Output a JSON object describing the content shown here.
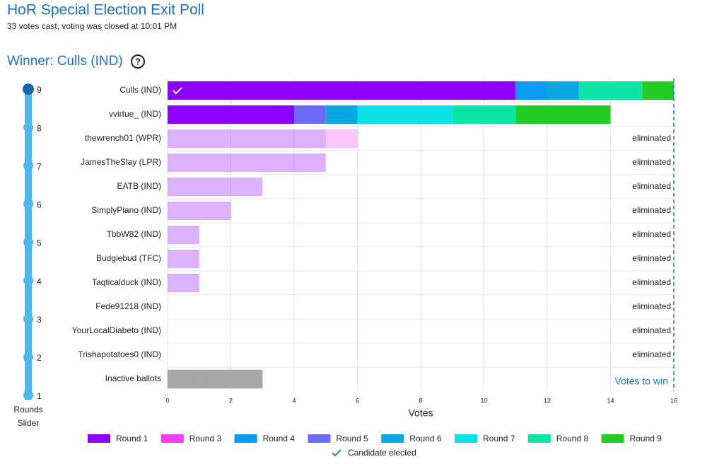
{
  "header": {
    "title": "HoR Special Election Exit Poll",
    "subtitle": "33 votes cast, voting was closed at 10:01 PM",
    "winner": "Winner: Culls (IND)"
  },
  "slider": {
    "ticks": [
      9,
      8,
      7,
      6,
      5,
      4,
      3,
      2,
      1
    ],
    "active": 9,
    "label_lines": [
      "Rounds",
      "Slider"
    ]
  },
  "chart_data": {
    "type": "stacked-bar-horizontal",
    "categories": [
      "Culls (IND)",
      "vvirtue_ (IND)",
      "thewrench01 (WPR)",
      "JamesTheSlay (LPR)",
      "EATB (IND)",
      "SimplyPiano (IND)",
      "TbbW82 (IND)",
      "Budgiebud (TFC)",
      "Taqticalduck (IND)",
      "Fede91218 (IND)",
      "YourLocalDiabeto (IND)",
      "Trishapotatoes0 (IND)"
    ],
    "status": [
      null,
      null,
      "eliminated",
      "eliminated",
      "eliminated",
      "eliminated",
      "eliminated",
      "eliminated",
      "eliminated",
      "eliminated",
      "eliminated",
      "eliminated"
    ],
    "series": [
      {
        "name": "Round 1",
        "color": "#8b00ff",
        "values": [
          11,
          4,
          5,
          5,
          3,
          2,
          1,
          1,
          1,
          0,
          0,
          0
        ]
      },
      {
        "name": "Round 3",
        "color": "#f03ef0",
        "values": [
          0,
          0,
          1,
          0,
          0,
          0,
          0,
          0,
          0,
          0,
          0,
          0
        ]
      },
      {
        "name": "Round 4",
        "color": "#0a9cf5",
        "values": [
          1,
          0,
          0,
          0,
          0,
          0,
          0,
          0,
          0,
          0,
          0,
          0
        ]
      },
      {
        "name": "Round 5",
        "color": "#6b6bf7",
        "values": [
          0,
          1,
          0,
          0,
          0,
          0,
          0,
          0,
          0,
          0,
          0,
          0
        ]
      },
      {
        "name": "Round 6",
        "color": "#08a8e0",
        "values": [
          1,
          1,
          0,
          0,
          0,
          0,
          0,
          0,
          0,
          0,
          0,
          0
        ]
      },
      {
        "name": "Round 7",
        "color": "#0ce0e6",
        "values": [
          0,
          3,
          0,
          0,
          0,
          0,
          0,
          0,
          0,
          0,
          0,
          0
        ]
      },
      {
        "name": "Round 8",
        "color": "#0be6a8",
        "values": [
          2,
          2,
          0,
          0,
          0,
          0,
          0,
          0,
          0,
          0,
          0,
          0
        ]
      },
      {
        "name": "Round 9",
        "color": "#22cc22",
        "values": [
          1,
          3,
          0,
          0,
          0,
          0,
          0,
          0,
          0,
          0,
          0,
          0
        ]
      }
    ],
    "inactive": {
      "label": "Inactive ballots",
      "values": [
        1,
        2
      ],
      "color": "#a6a6a6"
    },
    "threshold": 16,
    "threshold_label": "Votes to win",
    "xlabel": "Votes",
    "xlim": [
      0,
      16
    ],
    "xticks": [
      0,
      2,
      4,
      6,
      8,
      10,
      12,
      14,
      16
    ],
    "grid": true,
    "elected_label": "Candidate elected"
  }
}
